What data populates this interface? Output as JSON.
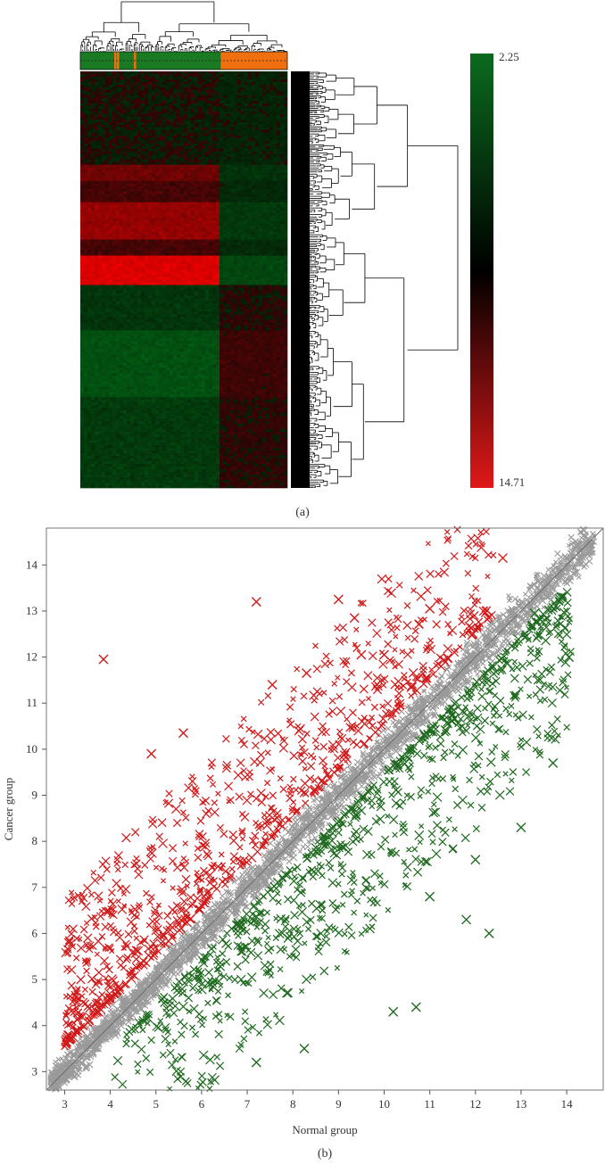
{
  "chart_data": [
    {
      "type": "heatmap",
      "panel_label": "(a)",
      "title": "",
      "colorbar": {
        "max_label": "2.25",
        "min_label": "14.71",
        "colors": [
          "#0b6b1e",
          "#000000",
          "#e01818"
        ]
      },
      "group_bar": {
        "colors": [
          "#1a7a24",
          "#f07010"
        ],
        "normal_fraction": 0.68,
        "cancer_fraction": 0.32
      },
      "row_bands": [
        {
          "from": 0.0,
          "to": 0.22,
          "value": 0.0,
          "note": "near black"
        },
        {
          "from": 0.22,
          "to": 0.26,
          "value": 0.35
        },
        {
          "from": 0.26,
          "to": 0.31,
          "value": 0.15
        },
        {
          "from": 0.31,
          "to": 0.4,
          "value": 0.55
        },
        {
          "from": 0.4,
          "to": 0.44,
          "value": 0.15
        },
        {
          "from": 0.44,
          "to": 0.51,
          "value": 0.9
        },
        {
          "from": 0.51,
          "to": 0.62,
          "value": -0.2
        },
        {
          "from": 0.62,
          "to": 0.78,
          "value": -0.45
        },
        {
          "from": 0.78,
          "to": 1.0,
          "value": -0.25
        }
      ]
    },
    {
      "type": "scatter",
      "panel_label": "(b)",
      "title": "",
      "xlabel": "Normal group",
      "ylabel": "Cancer group",
      "xlim": [
        2.6,
        14.8
      ],
      "ylim": [
        2.6,
        14.8
      ],
      "xticks": [
        3,
        4,
        5,
        6,
        7,
        8,
        9,
        10,
        11,
        12,
        13,
        14
      ],
      "yticks": [
        3,
        4,
        5,
        6,
        7,
        8,
        9,
        10,
        11,
        12,
        13,
        14
      ],
      "grid": false,
      "legend": "none",
      "reference_line": {
        "slope": 1,
        "intercept": 0
      },
      "series": [
        {
          "color": "#9a9a9a",
          "marker": "x",
          "description_points": "non-differential genes along y=x, x from 2.7 to 14.6"
        },
        {
          "color": "#d11a1a",
          "marker": "x",
          "description_points": "up-regulated in cancer, above diagonal"
        },
        {
          "color": "#1f6a1f",
          "marker": "x",
          "description_points": "down-regulated in cancer, below diagonal"
        }
      ],
      "highlighted_points": {
        "red": [
          [
            3.85,
            11.95
          ],
          [
            7.2,
            13.2
          ],
          [
            9.0,
            13.25
          ],
          [
            9.35,
            12.85
          ],
          [
            11.0,
            13.05
          ],
          [
            12.6,
            14.15
          ],
          [
            5.6,
            10.35
          ],
          [
            4.9,
            9.9
          ],
          [
            7.55,
            11.4
          ],
          [
            10.0,
            12.05
          ],
          [
            8.3,
            11.65
          ],
          [
            9.5,
            12.05
          ]
        ],
        "green": [
          [
            7.2,
            3.2
          ],
          [
            8.25,
            3.5
          ],
          [
            13.3,
            12.95
          ],
          [
            13.7,
            9.7
          ],
          [
            10.7,
            4.4
          ],
          [
            13.0,
            8.3
          ],
          [
            12.3,
            6.0
          ],
          [
            11.8,
            6.3
          ],
          [
            14.05,
            12.0
          ],
          [
            11.0,
            6.8
          ],
          [
            12.0,
            7.6
          ],
          [
            10.2,
            4.3
          ]
        ]
      }
    }
  ]
}
